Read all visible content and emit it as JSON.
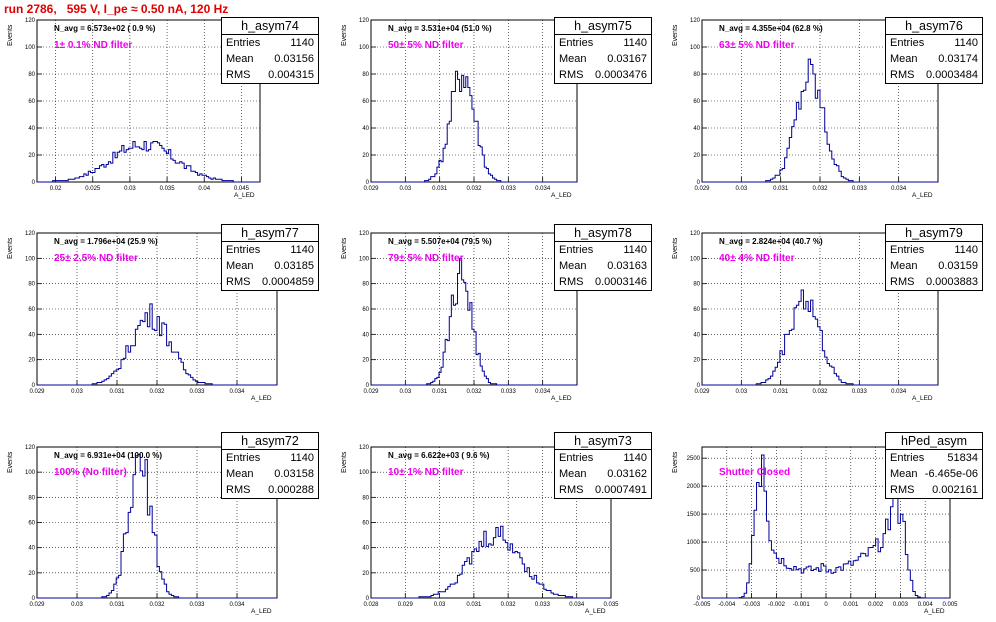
{
  "title": "run 2786,   595 V, I_pe ≈ 0.50 nA, 120 Hz",
  "chart_data": [
    {
      "type": "histogram",
      "name": "h_asym74",
      "entries": "1140",
      "mean": "0.03156",
      "rms": "0.004315",
      "navg": "N_avg = 6.573e+02 ( 0.9 %)",
      "filter": "1± 0.1% ND filter",
      "ylabel": "Events",
      "xlabel": "A_LED",
      "xlim": [
        0.0175,
        0.0475
      ],
      "ylim": [
        0,
        120
      ],
      "xticks": [
        "0.02",
        "0.025",
        "0.03",
        "0.035",
        "0.04",
        "0.045"
      ],
      "yticks": [
        "0",
        "20",
        "40",
        "60",
        "80",
        "100",
        "120"
      ],
      "dist": {
        "mean": 0.0318,
        "sigma": 0.0043,
        "peak": 28
      }
    },
    {
      "type": "histogram",
      "name": "h_asym75",
      "entries": "1140",
      "mean": "0.03167",
      "rms": "0.0003476",
      "navg": "N_avg = 3.531e+04 (51.0 %)",
      "filter": "50± 5% ND filter",
      "ylabel": "Events",
      "xlabel": "A_LED",
      "xlim": [
        0.029,
        0.035
      ],
      "ylim": [
        0,
        120
      ],
      "xticks": [
        "0.029",
        "0.03",
        "0.031",
        "0.032",
        "0.033",
        "0.034"
      ],
      "yticks": [
        "0",
        "20",
        "40",
        "60",
        "80",
        "100",
        "120"
      ],
      "dist": {
        "mean": 0.03167,
        "sigma": 0.00035,
        "peak": 82
      }
    },
    {
      "type": "histogram",
      "name": "h_asym76",
      "entries": "1140",
      "mean": "0.03174",
      "rms": "0.0003484",
      "navg": "N_avg = 4.355e+04 (62.8 %)",
      "filter": "63± 5% ND filter",
      "ylabel": "Events",
      "xlabel": "A_LED",
      "xlim": [
        0.029,
        0.035
      ],
      "ylim": [
        0,
        120
      ],
      "xticks": [
        "0.029",
        "0.03",
        "0.031",
        "0.032",
        "0.033",
        "0.034"
      ],
      "yticks": [
        "0",
        "20",
        "40",
        "60",
        "80",
        "100",
        "120"
      ],
      "dist": {
        "mean": 0.03174,
        "sigma": 0.00035,
        "peak": 78
      }
    },
    {
      "type": "histogram",
      "name": "h_asym77",
      "entries": "1140",
      "mean": "0.03185",
      "rms": "0.0004859",
      "navg": "N_avg = 1.796e+04 (25.9 %)",
      "filter": "25± 2.5% ND filter",
      "ylabel": "Events",
      "xlabel": "A_LED",
      "xlim": [
        0.029,
        0.035
      ],
      "ylim": [
        0,
        120
      ],
      "xticks": [
        "0.029",
        "0.03",
        "0.031",
        "0.032",
        "0.033",
        "0.034"
      ],
      "yticks": [
        "0",
        "20",
        "40",
        "60",
        "80",
        "100",
        "120"
      ],
      "dist": {
        "mean": 0.03185,
        "sigma": 0.00049,
        "peak": 55
      }
    },
    {
      "type": "histogram",
      "name": "h_asym78",
      "entries": "1140",
      "mean": "0.03163",
      "rms": "0.0003146",
      "navg": "N_avg = 5.507e+04 (79.5 %)",
      "filter": "79± 5% ND filter",
      "ylabel": "Events",
      "xlabel": "A_LED",
      "xlim": [
        0.029,
        0.035
      ],
      "ylim": [
        0,
        120
      ],
      "xticks": [
        "0.029",
        "0.03",
        "0.031",
        "0.032",
        "0.033",
        "0.034"
      ],
      "yticks": [
        "0",
        "20",
        "40",
        "60",
        "80",
        "100",
        "120"
      ],
      "dist": {
        "mean": 0.03163,
        "sigma": 0.00031,
        "peak": 87
      }
    },
    {
      "type": "histogram",
      "name": "h_asym79",
      "entries": "1140",
      "mean": "0.03159",
      "rms": "0.0003883",
      "navg": "N_avg = 2.824e+04 (40.7 %)",
      "filter": "40± 4% ND filter",
      "ylabel": "Events",
      "xlabel": "A_LED",
      "xlim": [
        0.029,
        0.035
      ],
      "ylim": [
        0,
        120
      ],
      "xticks": [
        "0.029",
        "0.03",
        "0.031",
        "0.032",
        "0.033",
        "0.034"
      ],
      "yticks": [
        "0",
        "20",
        "40",
        "60",
        "80",
        "100",
        "120"
      ],
      "dist": {
        "mean": 0.03159,
        "sigma": 0.00039,
        "peak": 70
      }
    },
    {
      "type": "histogram",
      "name": "h_asym72",
      "entries": "1140",
      "mean": "0.03158",
      "rms": "0.000288",
      "navg": "N_avg = 6.931e+04 (100.0 %)",
      "filter": "100% (No filter)",
      "ylabel": "Events",
      "xlabel": "A_LED",
      "xlim": [
        0.029,
        0.035
      ],
      "ylim": [
        0,
        120
      ],
      "xticks": [
        "0.029",
        "0.03",
        "0.031",
        "0.032",
        "0.033",
        "0.034"
      ],
      "yticks": [
        "0",
        "20",
        "40",
        "60",
        "80",
        "100",
        "120"
      ],
      "dist": {
        "mean": 0.03158,
        "sigma": 0.00029,
        "peak": 105
      }
    },
    {
      "type": "histogram",
      "name": "h_asym73",
      "entries": "1140",
      "mean": "0.03162",
      "rms": "0.0007491",
      "navg": "N_avg = 6.622e+03 ( 9.6 %)",
      "filter": "10± 1% ND filter",
      "ylabel": "Events",
      "xlabel": "A_LED",
      "xlim": [
        0.028,
        0.035
      ],
      "ylim": [
        0,
        120
      ],
      "xticks": [
        "0.028",
        "0.029",
        "0.03",
        "0.031",
        "0.032",
        "0.033",
        "0.034",
        "0.035"
      ],
      "yticks": [
        "0",
        "20",
        "40",
        "60",
        "80",
        "100",
        "120"
      ],
      "dist": {
        "mean": 0.03165,
        "sigma": 0.00075,
        "peak": 50
      }
    },
    {
      "type": "histogram",
      "name": "hPed_asym",
      "entries": "51834",
      "mean": "-6.465e-06",
      "rms": "0.002161",
      "navg": "",
      "filter": "Shutter Closed",
      "ylabel": "Events",
      "xlabel": "A_LED",
      "xlim": [
        -0.005,
        0.005
      ],
      "ylim": [
        0,
        2700
      ],
      "xticks": [
        "-0.005",
        "-0.004",
        "-0.003",
        "-0.002",
        "-0.001",
        "0",
        "0.001",
        "0.002",
        "0.003",
        "0.004",
        "0.005"
      ],
      "yticks": [
        "0",
        "500",
        "1000",
        "1500",
        "2000",
        "2500"
      ],
      "dist": {
        "bimodal": true,
        "peaks": [
          -0.0027,
          0.003
        ],
        "peak": 2400
      }
    }
  ]
}
